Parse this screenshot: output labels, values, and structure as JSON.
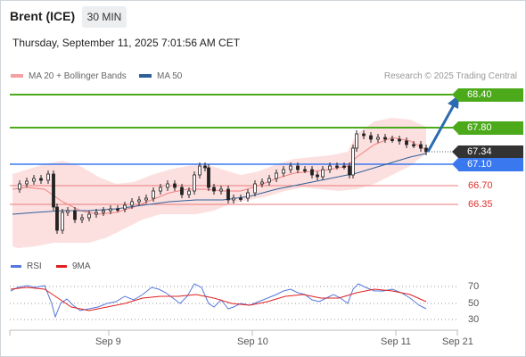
{
  "header": {
    "instrument": "Brent (ICE)",
    "timeframe": "30 MIN"
  },
  "datetime": "Thursday, September 11, 2025 7:01:56 AM CET",
  "legend": {
    "ma20_label": "MA 20 + Bollinger Bands",
    "ma20_color": "#f4a0a0",
    "ma50_label": "MA 50",
    "ma50_color": "#2f5f98",
    "copyright": "Research © 2025 Trading Central"
  },
  "levels": {
    "resistance2": {
      "label": "68.40",
      "color": "#4caa1a"
    },
    "resistance1": {
      "label": "67.80",
      "color": "#4caa1a"
    },
    "last": {
      "label": "67.34",
      "color": "#333333"
    },
    "pivot": {
      "label": "67.10",
      "color": "#3a78f0"
    },
    "support1": {
      "label": "66.70",
      "color": "#e05555"
    },
    "support2": {
      "label": "66.35",
      "color": "#e05555"
    }
  },
  "rsi_panel": {
    "rsi_label": "RSI",
    "rsi_color": "#5577dd",
    "ma_label": "9MA",
    "ma_color": "#e02020",
    "ticks": [
      "70",
      "50",
      "30"
    ]
  },
  "x_axis": [
    "Sep 9",
    "Sep 10",
    "Sep 11",
    "Sep 21"
  ],
  "chart_data": {
    "type": "candlestick",
    "price_levels": [
      68.4,
      67.8,
      67.34,
      67.1,
      66.7,
      66.35
    ],
    "rsi_levels": [
      70,
      50,
      30
    ]
  }
}
